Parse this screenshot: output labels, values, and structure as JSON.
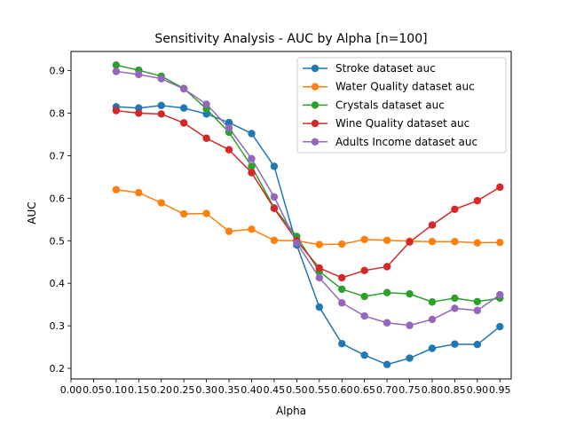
{
  "chart_data": {
    "type": "line",
    "title": "Sensitivity Analysis - AUC by Alpha [n=100]",
    "xlabel": "Alpha",
    "ylabel": "AUC",
    "xlim": [
      0.0,
      0.975
    ],
    "ylim": [
      0.175,
      0.945
    ],
    "xticks": [
      "0.00",
      "0.05",
      "0.10",
      "0.15",
      "0.20",
      "0.25",
      "0.30",
      "0.35",
      "0.40",
      "0.45",
      "0.50",
      "0.55",
      "0.60",
      "0.65",
      "0.70",
      "0.75",
      "0.80",
      "0.85",
      "0.90",
      "0.95"
    ],
    "yticks": [
      "0.2",
      "0.3",
      "0.4",
      "0.5",
      "0.6",
      "0.7",
      "0.8",
      "0.9"
    ],
    "grid": false,
    "legend_position": "top-right",
    "x": [
      0.1,
      0.15,
      0.2,
      0.25,
      0.3,
      0.35,
      0.4,
      0.45,
      0.5,
      0.55,
      0.6,
      0.65,
      0.7,
      0.75,
      0.8,
      0.85,
      0.9,
      0.95
    ],
    "series": [
      {
        "name": "Stroke dataset auc",
        "color": "#1f77b4",
        "values": [
          0.815,
          0.812,
          0.818,
          0.812,
          0.798,
          0.778,
          0.752,
          0.675,
          0.49,
          0.344,
          0.258,
          0.231,
          0.209,
          0.224,
          0.247,
          0.257,
          0.256,
          0.298
        ]
      },
      {
        "name": "Water Quality dataset auc",
        "color": "#ff7f0e",
        "values": [
          0.62,
          0.613,
          0.589,
          0.563,
          0.564,
          0.522,
          0.527,
          0.501,
          0.5,
          0.491,
          0.492,
          0.503,
          0.501,
          0.499,
          0.498,
          0.498,
          0.495,
          0.496
        ]
      },
      {
        "name": "Crystals dataset auc",
        "color": "#2ca02c",
        "values": [
          0.913,
          0.901,
          0.887,
          0.858,
          0.81,
          0.755,
          0.675,
          0.577,
          0.51,
          0.428,
          0.386,
          0.369,
          0.378,
          0.375,
          0.356,
          0.365,
          0.357,
          0.365
        ]
      },
      {
        "name": "Wine Quality dataset auc",
        "color": "#d62728",
        "values": [
          0.806,
          0.8,
          0.798,
          0.777,
          0.741,
          0.714,
          0.66,
          0.576,
          0.5,
          0.436,
          0.413,
          0.43,
          0.439,
          0.497,
          0.537,
          0.574,
          0.594,
          0.626
        ]
      },
      {
        "name": "Adults Income dataset auc",
        "color": "#9467bd",
        "values": [
          0.898,
          0.891,
          0.881,
          0.857,
          0.821,
          0.765,
          0.693,
          0.603,
          0.495,
          0.413,
          0.354,
          0.323,
          0.307,
          0.301,
          0.315,
          0.341,
          0.336,
          0.373
        ]
      }
    ]
  }
}
